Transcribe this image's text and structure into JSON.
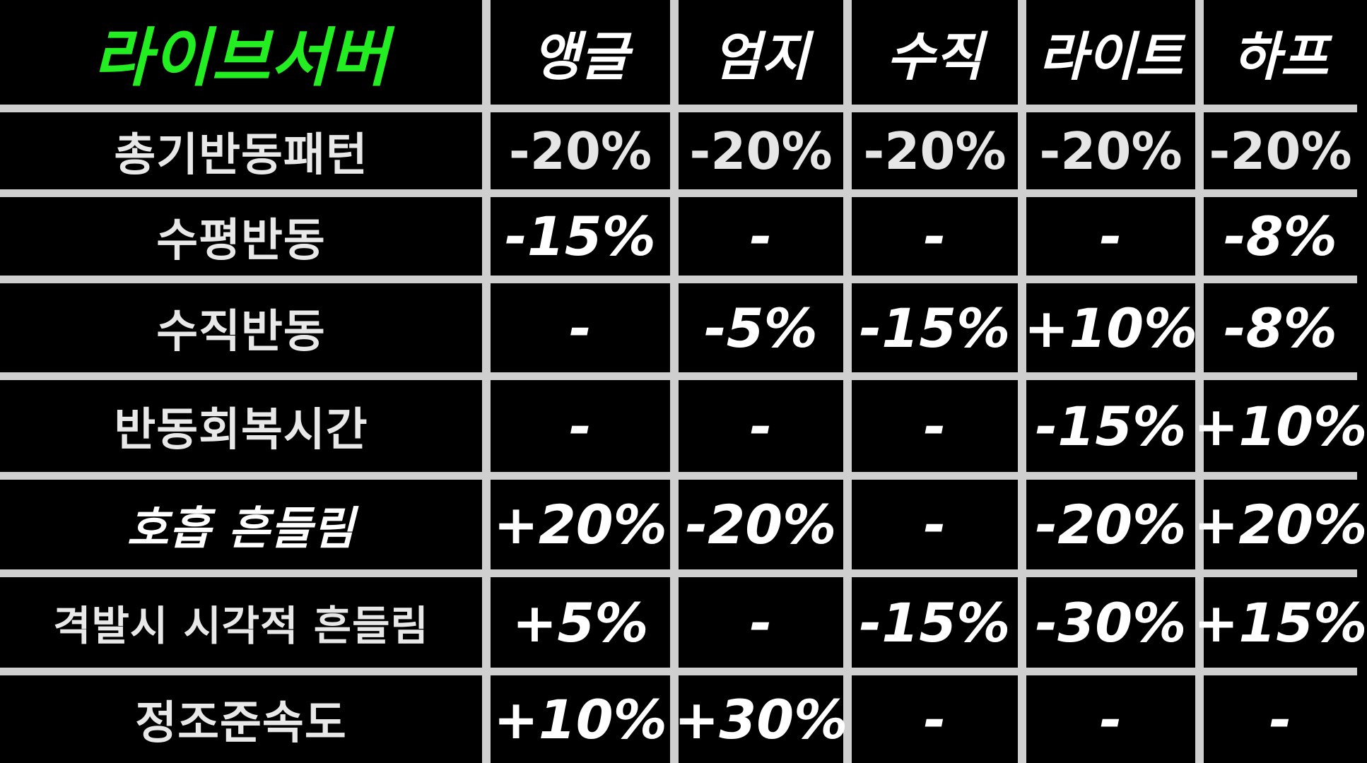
{
  "table": {
    "title": "라이브서버",
    "columns": [
      "앵글",
      "엄지",
      "수직",
      "라이트",
      "하프"
    ],
    "rows": [
      {
        "label": "총기반동패턴",
        "values": [
          "-20%",
          "-20%",
          "-20%",
          "-20%",
          "-20%"
        ]
      },
      {
        "label": "수평반동",
        "values": [
          "-15%",
          "-",
          "-",
          "-",
          "-8%"
        ]
      },
      {
        "label": "수직반동",
        "values": [
          "-",
          "-5%",
          "-15%",
          "+10%",
          "-8%"
        ]
      },
      {
        "label": "반동회복시간",
        "values": [
          "-",
          "-",
          "-",
          "-15%",
          "+10%"
        ]
      },
      {
        "label": "호흡 흔들림",
        "values": [
          "+20%",
          "-20%",
          "-",
          "-20%",
          "+20%"
        ]
      },
      {
        "label": "격발시 시각적 흔들림",
        "values": [
          "+5%",
          "-",
          "-15%",
          "-30%",
          "+15%"
        ]
      },
      {
        "label": "정조준속도",
        "values": [
          "+10%",
          "+30%",
          "-",
          "-",
          "-"
        ]
      }
    ]
  },
  "colors": {
    "title": "#22ee22",
    "background": "#000000",
    "grid": "#cfcfcf",
    "text": "#ffffff"
  }
}
